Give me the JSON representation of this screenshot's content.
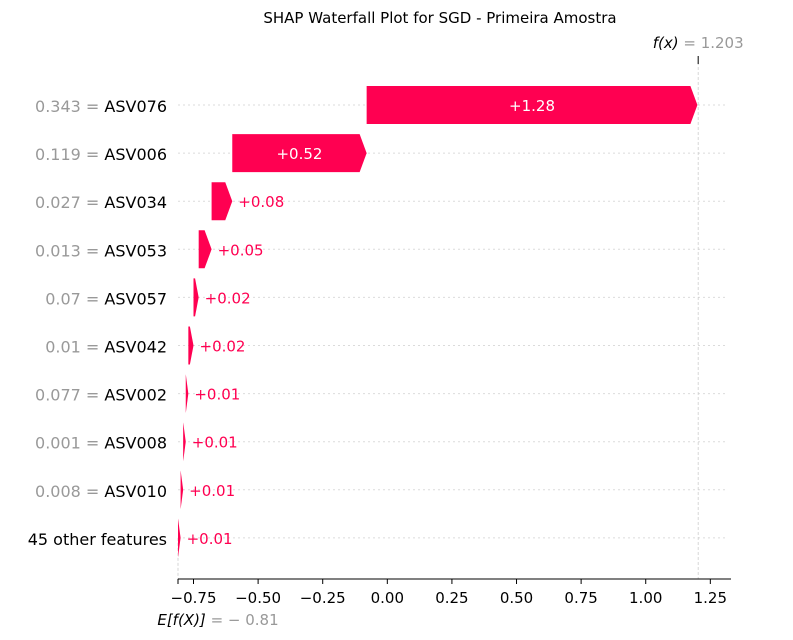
{
  "chart_data": {
    "type": "waterfall",
    "title": "SHAP Waterfall Plot for SGD - Primeira Amostra",
    "fx_label": "f(x)",
    "fx_value": "1.203",
    "base_label": "E[f(X)]",
    "base_value_text": "= − 0.81",
    "base_value": -0.81,
    "final_value": 1.203,
    "features": [
      {
        "value_text": "0.343 =",
        "name": "ASV076",
        "shap": 1.28,
        "label": "+1.28"
      },
      {
        "value_text": "0.119 =",
        "name": "ASV006",
        "shap": 0.52,
        "label": "+0.52"
      },
      {
        "value_text": "0.027 =",
        "name": "ASV034",
        "shap": 0.08,
        "label": "+0.08"
      },
      {
        "value_text": "0.013 =",
        "name": "ASV053",
        "shap": 0.05,
        "label": "+0.05"
      },
      {
        "value_text": "0.07 =",
        "name": "ASV057",
        "shap": 0.02,
        "label": "+0.02"
      },
      {
        "value_text": "0.01 =",
        "name": "ASV042",
        "shap": 0.02,
        "label": "+0.02"
      },
      {
        "value_text": "0.077 =",
        "name": "ASV002",
        "shap": 0.01,
        "label": "+0.01"
      },
      {
        "value_text": "0.001 =",
        "name": "ASV008",
        "shap": 0.01,
        "label": "+0.01"
      },
      {
        "value_text": "0.008 =",
        "name": "ASV010",
        "shap": 0.01,
        "label": "+0.01"
      },
      {
        "value_text": "",
        "name": "45 other features",
        "shap": 0.01,
        "label": "+0.01"
      }
    ],
    "xticks": [
      -0.75,
      -0.5,
      -0.25,
      0,
      0.25,
      0.5,
      0.75,
      1.0,
      1.25
    ],
    "xtick_labels": [
      "−0.75",
      "−0.50",
      "−0.25",
      "0.00",
      "0.25",
      "0.50",
      "0.75",
      "1.00",
      "1.25"
    ],
    "xlim": [
      -0.81,
      1.33
    ],
    "colors": {
      "positive": "#ff0051",
      "muted_text": "#999999",
      "grid": "#cccccc",
      "axis": "#000000"
    }
  }
}
